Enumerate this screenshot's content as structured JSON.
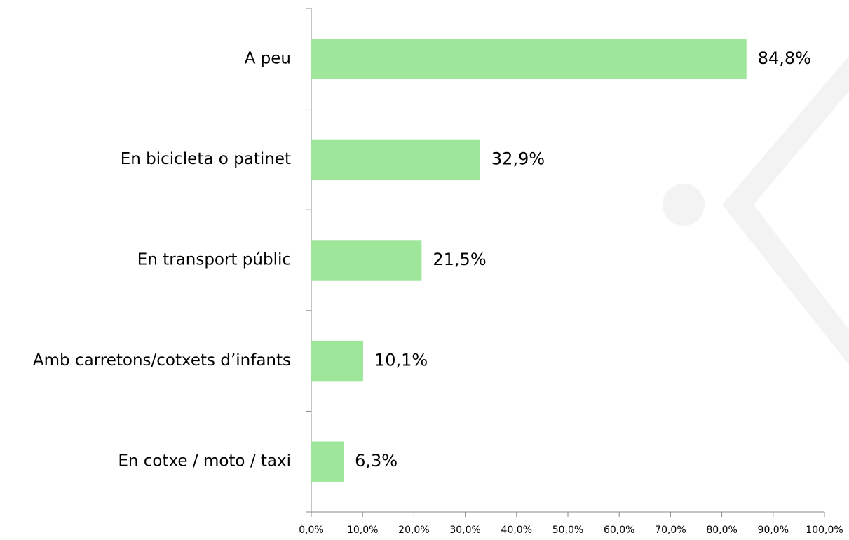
{
  "chart_data": {
    "type": "barh",
    "categories": [
      "A peu",
      "En bicicleta o patinet",
      "En transport públic",
      "Amb carretons/cotxets d’infants",
      "En cotxe / moto / taxi"
    ],
    "values": [
      84.8,
      32.9,
      21.5,
      10.1,
      6.3
    ],
    "value_labels": [
      "84,8%",
      "32,9%",
      "21,5%",
      "10,1%",
      "6,3%"
    ],
    "color": "#9de69a",
    "xlim": [
      0,
      100
    ],
    "xticks": [
      {
        "value": 0,
        "label": "0,0%"
      },
      {
        "value": 10,
        "label": "10,0%"
      },
      {
        "value": 20,
        "label": "20,0%"
      },
      {
        "value": 30,
        "label": "30,0%"
      },
      {
        "value": 40,
        "label": "40,0%"
      },
      {
        "value": 50,
        "label": "50,0%"
      },
      {
        "value": 60,
        "label": "60,0%"
      },
      {
        "value": 70,
        "label": "70,0%"
      },
      {
        "value": 80,
        "label": "80,0%"
      },
      {
        "value": 90,
        "label": "90,0%"
      },
      {
        "value": 100,
        "label": "100,0%"
      }
    ],
    "grid": false
  }
}
